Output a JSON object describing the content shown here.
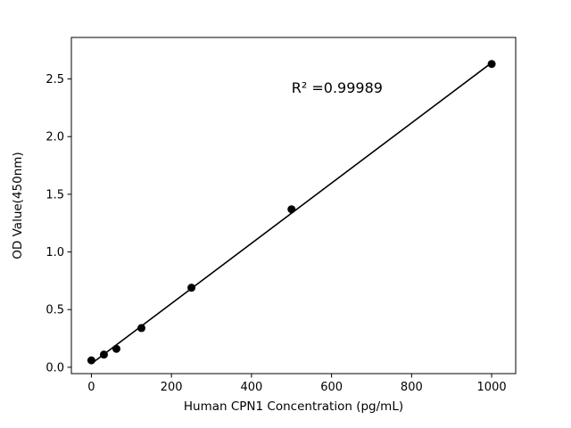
{
  "figure": {
    "background": "#ffffff",
    "foreground": "#000000"
  },
  "chart_data": {
    "type": "scatter",
    "title": "",
    "xlabel": "Human CPN1 Concentration (pg/mL)",
    "ylabel": "OD Value(450nm)",
    "x": [
      0,
      31.25,
      62.5,
      125,
      250,
      500,
      1000
    ],
    "y": [
      0.06,
      0.11,
      0.16,
      0.34,
      0.69,
      1.37,
      2.63
    ],
    "xlim": [
      -50,
      1060
    ],
    "ylim": [
      -0.055,
      2.86
    ],
    "xticks": [
      0,
      200,
      400,
      600,
      800,
      1000
    ],
    "yticks": [
      0.0,
      0.5,
      1.0,
      1.5,
      2.0,
      2.5
    ],
    "grid": false,
    "legend": "none",
    "marker_color": "#000000",
    "line_color": "#000000",
    "fit_line": {
      "slope": 0.00261,
      "intercept": 0.031,
      "x_start": 0,
      "x_end": 1000
    },
    "annotation": {
      "text": "R² =0.99989",
      "x": 500,
      "y": 2.38
    }
  }
}
